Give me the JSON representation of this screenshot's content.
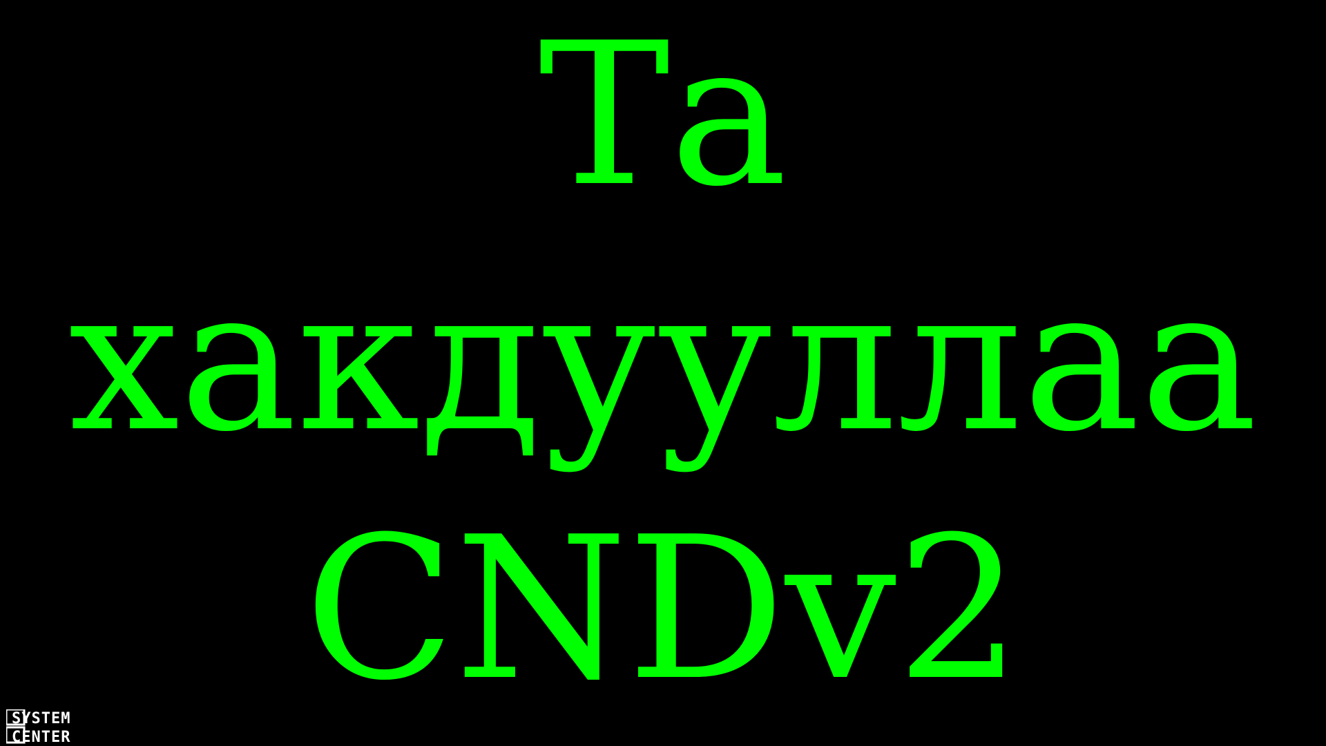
{
  "message": {
    "line1": "Та",
    "line2": "хакдууллаа",
    "line3": "CNDv2"
  },
  "logo": {
    "text_top": "SYSTEM",
    "text_bottom": "CENTER",
    "icon": "system-center-logo"
  },
  "colors": {
    "background": "#000000",
    "text": "#00ff00",
    "logo": "#ffffff"
  }
}
